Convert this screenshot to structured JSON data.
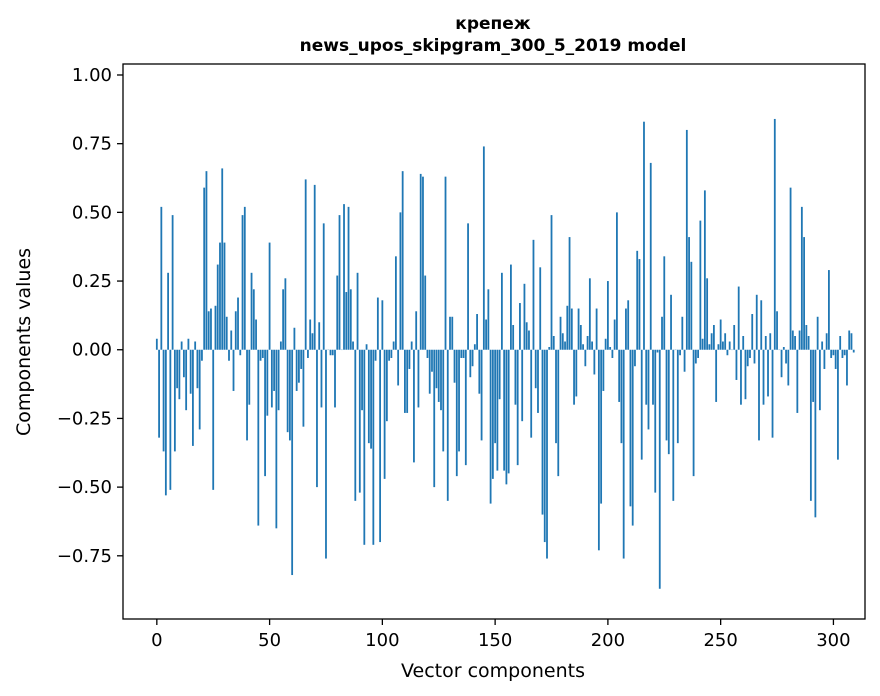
{
  "chart_data": {
    "type": "bar",
    "title": "крепеж",
    "subtitle": "news_upos_skipgram_300_5_2019 model",
    "xlabel": "Vector components",
    "ylabel": "Components values",
    "xlim": [
      -15,
      314
    ],
    "ylim": [
      -0.98,
      1.04
    ],
    "xticks": [
      0,
      50,
      100,
      150,
      200,
      250,
      300
    ],
    "xtick_labels": [
      "0",
      "50",
      "100",
      "150",
      "200",
      "250",
      "300"
    ],
    "yticks": [
      -0.75,
      -0.5,
      -0.25,
      0.0,
      0.25,
      0.5,
      0.75,
      1.0
    ],
    "ytick_labels": [
      "−0.75",
      "−0.50",
      "−0.25",
      "0.00",
      "0.25",
      "0.50",
      "0.75",
      "1.00"
    ],
    "color": "#1f77b4",
    "values": [
      0.04,
      -0.32,
      0.52,
      -0.37,
      -0.53,
      0.28,
      -0.51,
      0.49,
      -0.37,
      -0.14,
      -0.18,
      0.03,
      -0.1,
      -0.22,
      0.04,
      -0.16,
      -0.35,
      0.03,
      -0.14,
      -0.29,
      -0.04,
      0.59,
      0.65,
      0.14,
      0.15,
      -0.51,
      0.16,
      0.31,
      0.39,
      0.66,
      0.39,
      0.12,
      -0.04,
      0.07,
      -0.15,
      0.14,
      0.19,
      -0.02,
      0.49,
      0.52,
      -0.33,
      -0.2,
      0.28,
      0.22,
      0.11,
      -0.64,
      -0.04,
      -0.03,
      -0.46,
      -0.24,
      0.39,
      -0.21,
      -0.15,
      -0.65,
      -0.22,
      0.03,
      0.22,
      0.26,
      -0.3,
      -0.33,
      -0.82,
      0.08,
      -0.15,
      -0.12,
      -0.07,
      -0.28,
      0.62,
      -0.03,
      0.11,
      0.06,
      0.6,
      -0.5,
      0.1,
      -0.21,
      0.46,
      -0.76,
      0.0,
      -0.02,
      -0.02,
      -0.21,
      0.27,
      0.49,
      0.0,
      0.53,
      0.21,
      0.52,
      0.22,
      0.03,
      -0.55,
      0.28,
      -0.52,
      -0.22,
      -0.71,
      0.02,
      -0.34,
      -0.36,
      -0.71,
      -0.04,
      0.19,
      -0.7,
      0.18,
      -0.47,
      -0.26,
      -0.04,
      -0.03,
      0.03,
      0.34,
      -0.13,
      0.5,
      0.65,
      -0.23,
      -0.23,
      -0.07,
      0.03,
      -0.41,
      0.14,
      -0.21,
      0.64,
      0.63,
      0.27,
      -0.03,
      -0.16,
      -0.08,
      -0.5,
      -0.14,
      -0.19,
      -0.22,
      -0.37,
      0.63,
      -0.55,
      0.12,
      0.12,
      -0.12,
      -0.46,
      -0.37,
      -0.03,
      -0.03,
      -0.42,
      0.46,
      -0.1,
      -0.06,
      0.02,
      0.13,
      -0.16,
      -0.33,
      0.74,
      0.11,
      0.22,
      -0.56,
      -0.47,
      -0.34,
      -0.44,
      -0.18,
      0.28,
      -0.44,
      -0.49,
      -0.45,
      0.31,
      0.09,
      -0.2,
      -0.42,
      0.17,
      -0.26,
      0.24,
      0.1,
      0.07,
      -0.32,
      0.4,
      -0.14,
      -0.23,
      0.3,
      -0.6,
      -0.7,
      -0.76,
      0.01,
      0.49,
      0.05,
      -0.34,
      -0.46,
      0.12,
      0.06,
      0.03,
      0.16,
      0.41,
      0.15,
      -0.2,
      -0.17,
      0.15,
      0.09,
      0.02,
      -0.06,
      0.05,
      0.26,
      0.03,
      -0.09,
      0.15,
      -0.73,
      -0.56,
      -0.15,
      0.04,
      0.25,
      0.01,
      -0.03,
      0.11,
      0.5,
      -0.19,
      -0.34,
      -0.76,
      0.15,
      0.18,
      -0.57,
      -0.64,
      -0.06,
      0.36,
      0.33,
      -0.4,
      0.83,
      -0.2,
      -0.29,
      0.68,
      -0.2,
      -0.52,
      -0.01,
      -0.87,
      0.12,
      0.34,
      -0.33,
      -0.38,
      0.2,
      -0.55,
      0.0,
      -0.34,
      -0.02,
      0.12,
      -0.08,
      0.8,
      0.41,
      0.32,
      -0.46,
      -0.05,
      -0.03,
      0.47,
      0.04,
      0.58,
      0.26,
      0.02,
      0.06,
      0.09,
      -0.19,
      0.02,
      0.11,
      0.03,
      0.06,
      -0.02,
      0.03,
      0.0,
      0.09,
      -0.11,
      0.23,
      -0.2,
      0.05,
      -0.18,
      -0.06,
      -0.03,
      0.13,
      -0.05,
      0.2,
      -0.33,
      0.18,
      -0.2,
      0.05,
      -0.17,
      0.06,
      -0.32,
      0.84,
      0.14,
      0.0,
      -0.1,
      0.01,
      -0.05,
      -0.13,
      0.59,
      0.07,
      0.05,
      -0.23,
      0.07,
      0.52,
      0.41,
      0.09,
      0.05,
      -0.55,
      -0.19,
      -0.61,
      0.12,
      -0.22,
      0.03,
      -0.07,
      0.06,
      0.29,
      -0.03,
      -0.02,
      -0.07,
      -0.4,
      0.05,
      -0.03,
      -0.02,
      -0.13,
      0.07,
      0.06,
      -0.01
    ]
  }
}
